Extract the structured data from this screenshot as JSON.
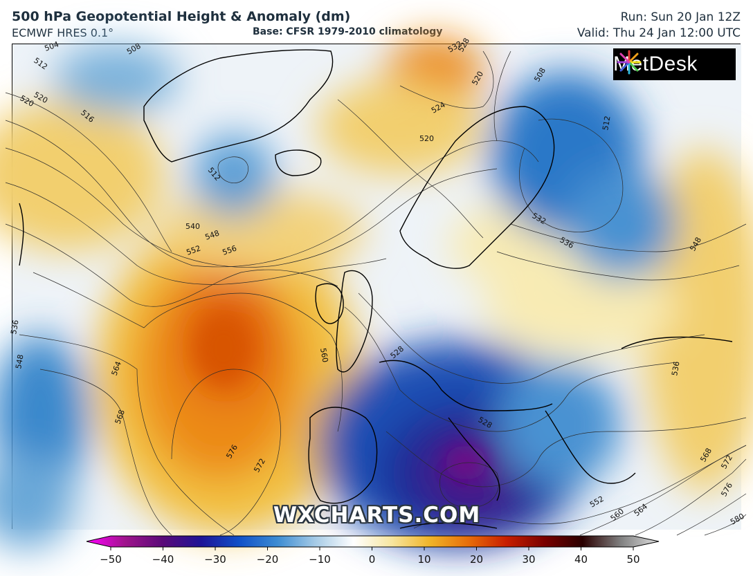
{
  "header": {
    "title": "500 hPa Geopotential Height & Anomaly (dm)",
    "model": "ECMWF HRES 0.1°",
    "base": "Base: CFSR 1979-2010 climatology",
    "run": "Run: Sun 20 Jan 12Z",
    "valid": "Valid: Thu 24 Jan 12:00 UTC"
  },
  "logo": {
    "text": "MetDesk"
  },
  "watermark": "WXCHARTS.COM",
  "contour_labels": [
    "504",
    "508",
    "512",
    "516",
    "520",
    "524",
    "528",
    "532",
    "536",
    "540",
    "548",
    "552",
    "556",
    "560",
    "564",
    "568",
    "572",
    "576",
    "580"
  ],
  "colorbar": {
    "ticks": [
      "−50",
      "−40",
      "−30",
      "−20",
      "−10",
      "0",
      "10",
      "20",
      "30",
      "40",
      "50"
    ],
    "min": -50,
    "max": 50,
    "colors": [
      "#ff00ff",
      "#a0148c",
      "#5a0a78",
      "#1e1496",
      "#1050c8",
      "#3c8cd2",
      "#a6cbe6",
      "#ffffff",
      "#f7e6a0",
      "#f0b428",
      "#e86e0a",
      "#c81e00",
      "#7a0000",
      "#2a0000",
      "#808080",
      "#e0e0e0"
    ]
  }
}
